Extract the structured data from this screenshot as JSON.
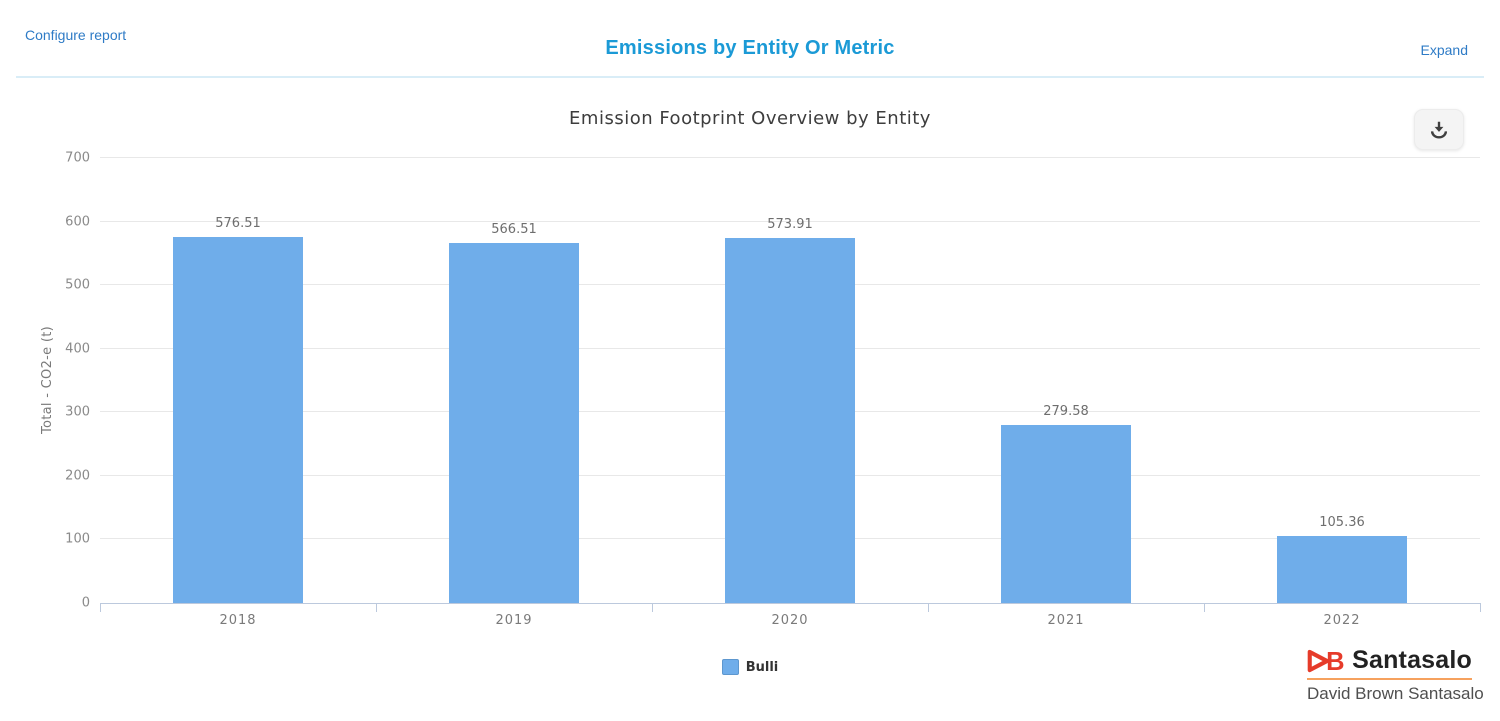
{
  "header": {
    "configure_label": "Configure report",
    "title": "Emissions by Entity Or Metric",
    "expand_label": "Expand"
  },
  "toolbar": {
    "download_icon": "download-icon"
  },
  "chart_data": {
    "type": "bar",
    "title": "Emission Footprint Overview by Entity",
    "categories": [
      "2018",
      "2019",
      "2020",
      "2021",
      "2022"
    ],
    "series": [
      {
        "name": "Bulli",
        "values": [
          576.51,
          566.51,
          573.91,
          279.58,
          105.36
        ],
        "color": "#6fadea"
      }
    ],
    "xlabel": "",
    "ylabel": "Total - CO2-e (t)",
    "ylim": [
      0,
      700
    ],
    "ytick_step": 100,
    "grid": true,
    "legend_position": "bottom",
    "value_labels_shown": true
  },
  "footer_logo": {
    "monogram_b": "B",
    "brand": "Santasalo",
    "subtitle": "David Brown Santasalo"
  },
  "colors": {
    "link_blue": "#2e7bc6",
    "title_blue": "#1b9ad6",
    "divider_blue": "#d9edf7",
    "bar_blue": "#6fadea",
    "axis_line": "#bcc9dd",
    "gridline": "#e8e8e8",
    "logo_red": "#e63b2a",
    "logo_orange": "#f6a15e"
  }
}
